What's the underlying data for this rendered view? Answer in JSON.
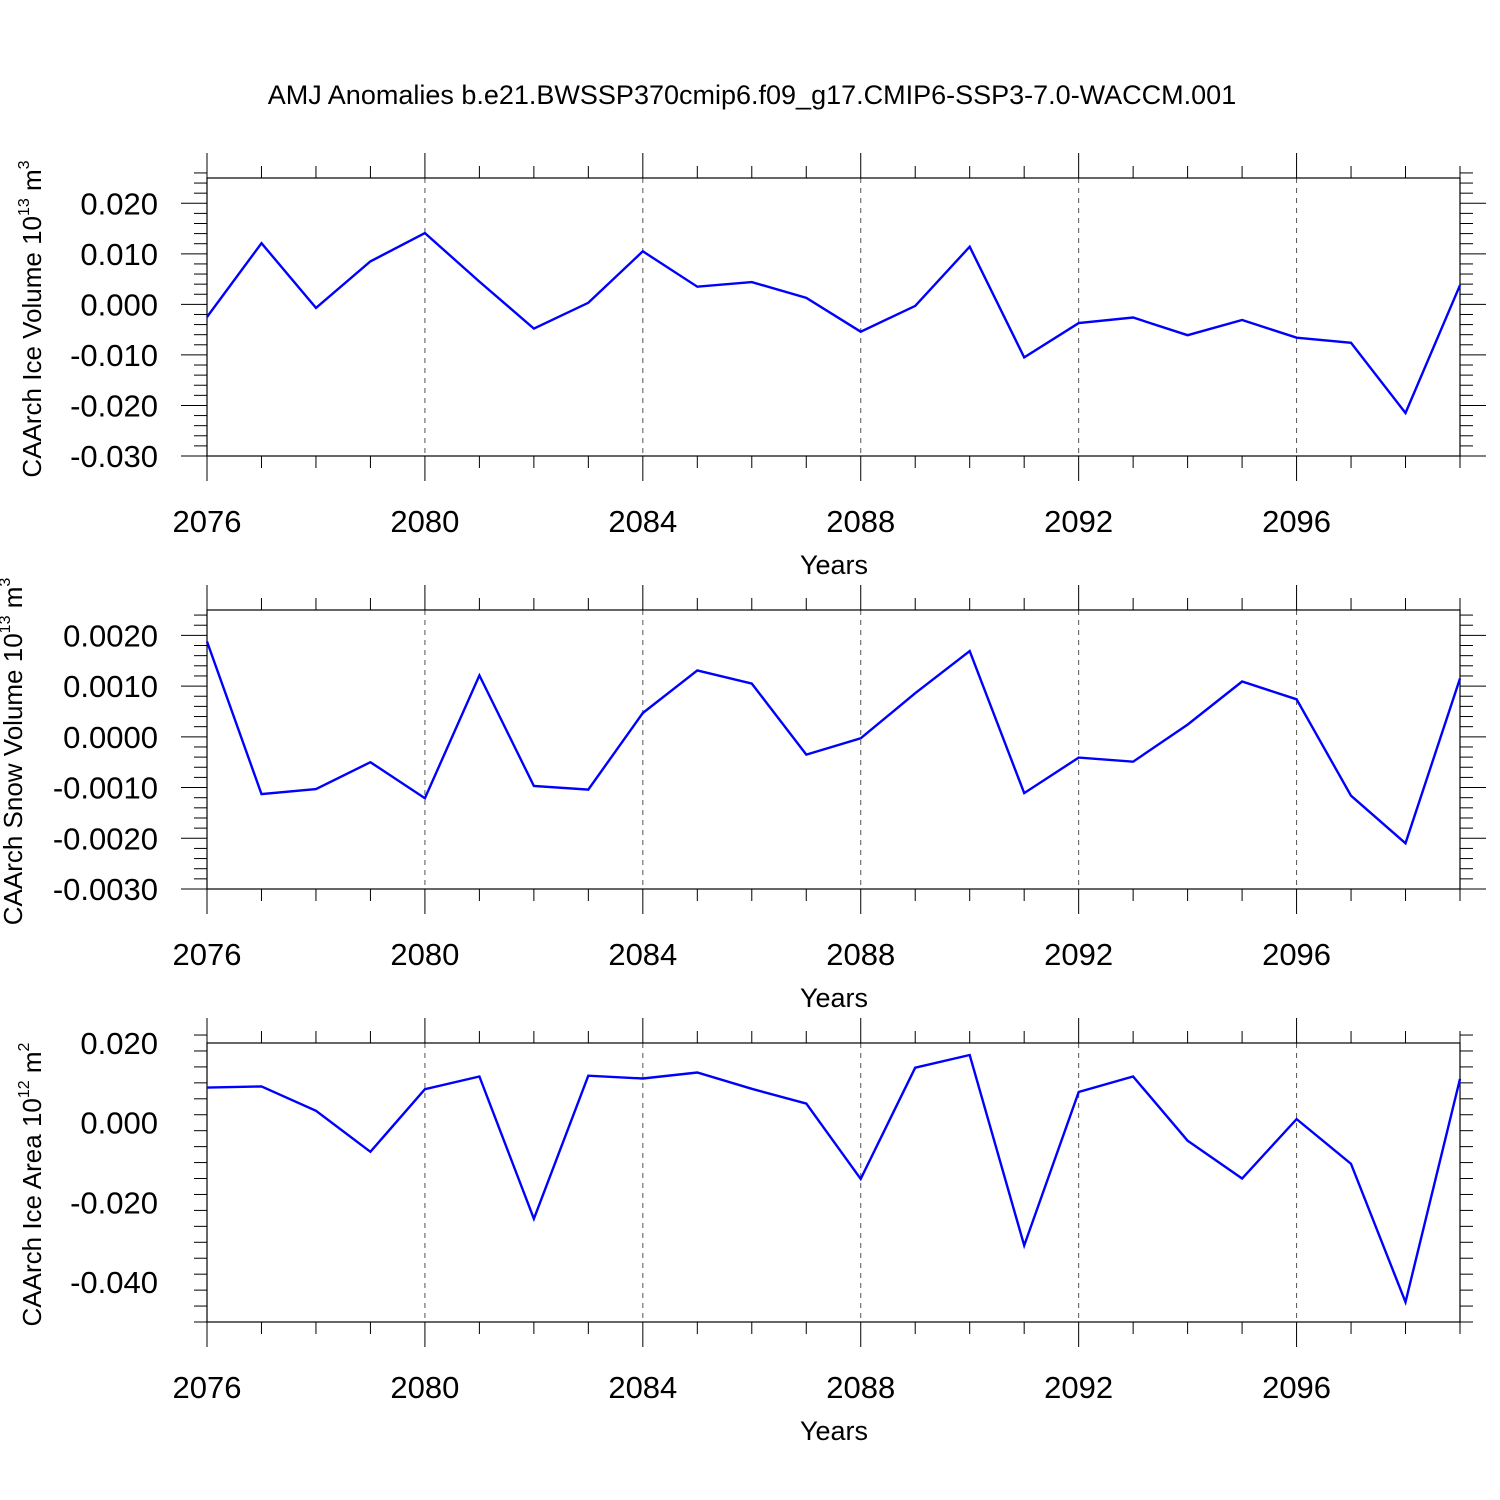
{
  "title": "AMJ Anomalies b.e21.BWSSP370cmip6.f09_g17.CMIP6-SSP3-7.0-WACCM.001",
  "colors": {
    "line": "#0000ff",
    "axis": "#000000",
    "grid": "#555555"
  },
  "chart_data": [
    {
      "type": "line",
      "ylabel": {
        "text": "CAArch Ice Volume 10",
        "exp": "13",
        "unit": " m",
        "unit_exp": "3"
      },
      "xlabel": "Years",
      "xlim": [
        2076,
        2099
      ],
      "ylim": [
        -0.03,
        0.025
      ],
      "ydecimals": 3,
      "yticks": [
        0.02,
        0.01,
        0.0,
        -0.01,
        -0.02,
        -0.03
      ],
      "ytick_labels": [
        "0.020",
        "0.010",
        "0.000",
        "-0.010",
        "-0.020",
        "-0.030"
      ],
      "xticks": [
        2076,
        2080,
        2084,
        2088,
        2092,
        2096
      ],
      "xtick_labels": [
        "2076",
        "2080",
        "2084",
        "2088",
        "2092",
        "2096"
      ],
      "x": [
        2076,
        2077,
        2078,
        2079,
        2080,
        2081,
        2082,
        2083,
        2084,
        2085,
        2086,
        2087,
        2088,
        2089,
        2090,
        2091,
        2092,
        2093,
        2094,
        2095,
        2096,
        2097,
        2098,
        2099
      ],
      "values": [
        -0.0025,
        0.0121,
        -0.0007,
        0.0085,
        0.0141,
        0.0045,
        -0.0048,
        0.0003,
        0.0105,
        0.0035,
        0.0044,
        0.0013,
        -0.0054,
        -0.0003,
        0.0114,
        -0.0105,
        -0.0037,
        -0.0026,
        -0.0061,
        -0.0031,
        -0.0066,
        -0.0076,
        -0.0215,
        0.0038
      ]
    },
    {
      "type": "line",
      "ylabel": {
        "text": "CAArch Snow Volume 10",
        "exp": "13",
        "unit": " m",
        "unit_exp": "3"
      },
      "xlabel": "Years",
      "xlim": [
        2076,
        2099
      ],
      "ylim": [
        -0.003,
        0.0025
      ],
      "ydecimals": 4,
      "yticks": [
        0.002,
        0.001,
        0.0,
        -0.001,
        -0.002,
        -0.003
      ],
      "ytick_labels": [
        "0.0020",
        "0.0010",
        "0.0000",
        "-0.0010",
        "-0.0020",
        "-0.0030"
      ],
      "xticks": [
        2076,
        2080,
        2084,
        2088,
        2092,
        2096
      ],
      "xtick_labels": [
        "2076",
        "2080",
        "2084",
        "2088",
        "2092",
        "2096"
      ],
      "x": [
        2076,
        2077,
        2078,
        2079,
        2080,
        2081,
        2082,
        2083,
        2084,
        2085,
        2086,
        2087,
        2088,
        2089,
        2090,
        2091,
        2092,
        2093,
        2094,
        2095,
        2096,
        2097,
        2098,
        2099
      ],
      "values": [
        0.00188,
        -0.00113,
        -0.00103,
        -0.0005,
        -0.00121,
        0.00121,
        -0.00097,
        -0.00104,
        0.00047,
        0.00131,
        0.00105,
        -0.00035,
        -3e-05,
        0.00086,
        0.00169,
        -0.00111,
        -0.00041,
        -0.00049,
        0.00024,
        0.00109,
        0.00074,
        -0.00116,
        -0.0021,
        0.00115
      ]
    },
    {
      "type": "line",
      "ylabel": {
        "text": "CAArch Ice Area 10",
        "exp": "12",
        "unit": " m",
        "unit_exp": "2"
      },
      "xlabel": "Years",
      "xlim": [
        2076,
        2099
      ],
      "ylim": [
        -0.05,
        0.02
      ],
      "ydecimals": 3,
      "yticks": [
        0.02,
        0.0,
        -0.02,
        -0.04
      ],
      "ytick_labels": [
        "0.020",
        "0.000",
        "-0.020",
        "-0.040"
      ],
      "xticks": [
        2076,
        2080,
        2084,
        2088,
        2092,
        2096
      ],
      "xtick_labels": [
        "2076",
        "2080",
        "2084",
        "2088",
        "2092",
        "2096"
      ],
      "x": [
        2076,
        2077,
        2078,
        2079,
        2080,
        2081,
        2082,
        2083,
        2084,
        2085,
        2086,
        2087,
        2088,
        2089,
        2090,
        2091,
        2092,
        2093,
        2094,
        2095,
        2096,
        2097,
        2098,
        2099
      ],
      "values": [
        0.0088,
        0.0091,
        0.003,
        -0.0073,
        0.0084,
        0.0116,
        -0.0241,
        0.0118,
        0.0111,
        0.0126,
        0.0085,
        0.0048,
        -0.0141,
        0.0138,
        0.017,
        -0.0308,
        0.0077,
        0.0116,
        -0.0045,
        -0.014,
        0.0009,
        -0.0103,
        -0.045,
        0.011
      ]
    }
  ]
}
